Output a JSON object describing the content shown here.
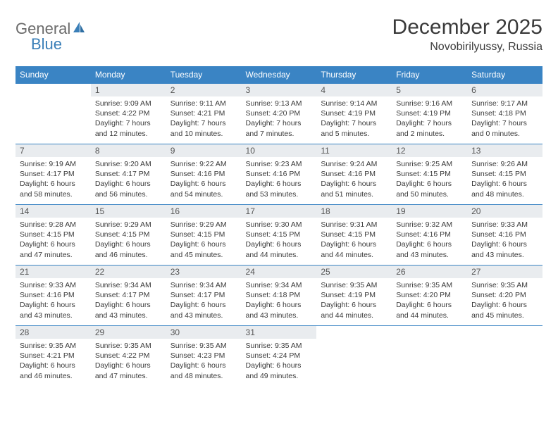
{
  "brand": {
    "part1": "General",
    "part2": "Blue"
  },
  "title": "December 2025",
  "location": "Novobirilyussy, Russia",
  "colors": {
    "header_bg": "#3a84c4",
    "header_text": "#ffffff",
    "daynum_bg": "#e9ecef",
    "border": "#3a84c4",
    "body_text": "#3a3a3a",
    "logo_gray": "#6b6b6b",
    "logo_blue": "#3a7fb8",
    "page_bg": "#ffffff"
  },
  "typography": {
    "title_fontsize": 30,
    "location_fontsize": 16,
    "dayhead_fontsize": 12,
    "daynum_fontsize": 12,
    "cell_fontsize": 10.5
  },
  "dayheads": [
    "Sunday",
    "Monday",
    "Tuesday",
    "Wednesday",
    "Thursday",
    "Friday",
    "Saturday"
  ],
  "weeks": [
    [
      {
        "n": "",
        "l1": "",
        "l2": "",
        "l3": "",
        "l4": "",
        "empty": true
      },
      {
        "n": "1",
        "l1": "Sunrise: 9:09 AM",
        "l2": "Sunset: 4:22 PM",
        "l3": "Daylight: 7 hours",
        "l4": "and 12 minutes."
      },
      {
        "n": "2",
        "l1": "Sunrise: 9:11 AM",
        "l2": "Sunset: 4:21 PM",
        "l3": "Daylight: 7 hours",
        "l4": "and 10 minutes."
      },
      {
        "n": "3",
        "l1": "Sunrise: 9:13 AM",
        "l2": "Sunset: 4:20 PM",
        "l3": "Daylight: 7 hours",
        "l4": "and 7 minutes."
      },
      {
        "n": "4",
        "l1": "Sunrise: 9:14 AM",
        "l2": "Sunset: 4:19 PM",
        "l3": "Daylight: 7 hours",
        "l4": "and 5 minutes."
      },
      {
        "n": "5",
        "l1": "Sunrise: 9:16 AM",
        "l2": "Sunset: 4:19 PM",
        "l3": "Daylight: 7 hours",
        "l4": "and 2 minutes."
      },
      {
        "n": "6",
        "l1": "Sunrise: 9:17 AM",
        "l2": "Sunset: 4:18 PM",
        "l3": "Daylight: 7 hours",
        "l4": "and 0 minutes."
      }
    ],
    [
      {
        "n": "7",
        "l1": "Sunrise: 9:19 AM",
        "l2": "Sunset: 4:17 PM",
        "l3": "Daylight: 6 hours",
        "l4": "and 58 minutes."
      },
      {
        "n": "8",
        "l1": "Sunrise: 9:20 AM",
        "l2": "Sunset: 4:17 PM",
        "l3": "Daylight: 6 hours",
        "l4": "and 56 minutes."
      },
      {
        "n": "9",
        "l1": "Sunrise: 9:22 AM",
        "l2": "Sunset: 4:16 PM",
        "l3": "Daylight: 6 hours",
        "l4": "and 54 minutes."
      },
      {
        "n": "10",
        "l1": "Sunrise: 9:23 AM",
        "l2": "Sunset: 4:16 PM",
        "l3": "Daylight: 6 hours",
        "l4": "and 53 minutes."
      },
      {
        "n": "11",
        "l1": "Sunrise: 9:24 AM",
        "l2": "Sunset: 4:16 PM",
        "l3": "Daylight: 6 hours",
        "l4": "and 51 minutes."
      },
      {
        "n": "12",
        "l1": "Sunrise: 9:25 AM",
        "l2": "Sunset: 4:15 PM",
        "l3": "Daylight: 6 hours",
        "l4": "and 50 minutes."
      },
      {
        "n": "13",
        "l1": "Sunrise: 9:26 AM",
        "l2": "Sunset: 4:15 PM",
        "l3": "Daylight: 6 hours",
        "l4": "and 48 minutes."
      }
    ],
    [
      {
        "n": "14",
        "l1": "Sunrise: 9:28 AM",
        "l2": "Sunset: 4:15 PM",
        "l3": "Daylight: 6 hours",
        "l4": "and 47 minutes."
      },
      {
        "n": "15",
        "l1": "Sunrise: 9:29 AM",
        "l2": "Sunset: 4:15 PM",
        "l3": "Daylight: 6 hours",
        "l4": "and 46 minutes."
      },
      {
        "n": "16",
        "l1": "Sunrise: 9:29 AM",
        "l2": "Sunset: 4:15 PM",
        "l3": "Daylight: 6 hours",
        "l4": "and 45 minutes."
      },
      {
        "n": "17",
        "l1": "Sunrise: 9:30 AM",
        "l2": "Sunset: 4:15 PM",
        "l3": "Daylight: 6 hours",
        "l4": "and 44 minutes."
      },
      {
        "n": "18",
        "l1": "Sunrise: 9:31 AM",
        "l2": "Sunset: 4:15 PM",
        "l3": "Daylight: 6 hours",
        "l4": "and 44 minutes."
      },
      {
        "n": "19",
        "l1": "Sunrise: 9:32 AM",
        "l2": "Sunset: 4:16 PM",
        "l3": "Daylight: 6 hours",
        "l4": "and 43 minutes."
      },
      {
        "n": "20",
        "l1": "Sunrise: 9:33 AM",
        "l2": "Sunset: 4:16 PM",
        "l3": "Daylight: 6 hours",
        "l4": "and 43 minutes."
      }
    ],
    [
      {
        "n": "21",
        "l1": "Sunrise: 9:33 AM",
        "l2": "Sunset: 4:16 PM",
        "l3": "Daylight: 6 hours",
        "l4": "and 43 minutes."
      },
      {
        "n": "22",
        "l1": "Sunrise: 9:34 AM",
        "l2": "Sunset: 4:17 PM",
        "l3": "Daylight: 6 hours",
        "l4": "and 43 minutes."
      },
      {
        "n": "23",
        "l1": "Sunrise: 9:34 AM",
        "l2": "Sunset: 4:17 PM",
        "l3": "Daylight: 6 hours",
        "l4": "and 43 minutes."
      },
      {
        "n": "24",
        "l1": "Sunrise: 9:34 AM",
        "l2": "Sunset: 4:18 PM",
        "l3": "Daylight: 6 hours",
        "l4": "and 43 minutes."
      },
      {
        "n": "25",
        "l1": "Sunrise: 9:35 AM",
        "l2": "Sunset: 4:19 PM",
        "l3": "Daylight: 6 hours",
        "l4": "and 44 minutes."
      },
      {
        "n": "26",
        "l1": "Sunrise: 9:35 AM",
        "l2": "Sunset: 4:20 PM",
        "l3": "Daylight: 6 hours",
        "l4": "and 44 minutes."
      },
      {
        "n": "27",
        "l1": "Sunrise: 9:35 AM",
        "l2": "Sunset: 4:20 PM",
        "l3": "Daylight: 6 hours",
        "l4": "and 45 minutes."
      }
    ],
    [
      {
        "n": "28",
        "l1": "Sunrise: 9:35 AM",
        "l2": "Sunset: 4:21 PM",
        "l3": "Daylight: 6 hours",
        "l4": "and 46 minutes."
      },
      {
        "n": "29",
        "l1": "Sunrise: 9:35 AM",
        "l2": "Sunset: 4:22 PM",
        "l3": "Daylight: 6 hours",
        "l4": "and 47 minutes."
      },
      {
        "n": "30",
        "l1": "Sunrise: 9:35 AM",
        "l2": "Sunset: 4:23 PM",
        "l3": "Daylight: 6 hours",
        "l4": "and 48 minutes."
      },
      {
        "n": "31",
        "l1": "Sunrise: 9:35 AM",
        "l2": "Sunset: 4:24 PM",
        "l3": "Daylight: 6 hours",
        "l4": "and 49 minutes."
      },
      {
        "n": "",
        "l1": "",
        "l2": "",
        "l3": "",
        "l4": "",
        "empty": true
      },
      {
        "n": "",
        "l1": "",
        "l2": "",
        "l3": "",
        "l4": "",
        "empty": true
      },
      {
        "n": "",
        "l1": "",
        "l2": "",
        "l3": "",
        "l4": "",
        "empty": true
      }
    ]
  ]
}
